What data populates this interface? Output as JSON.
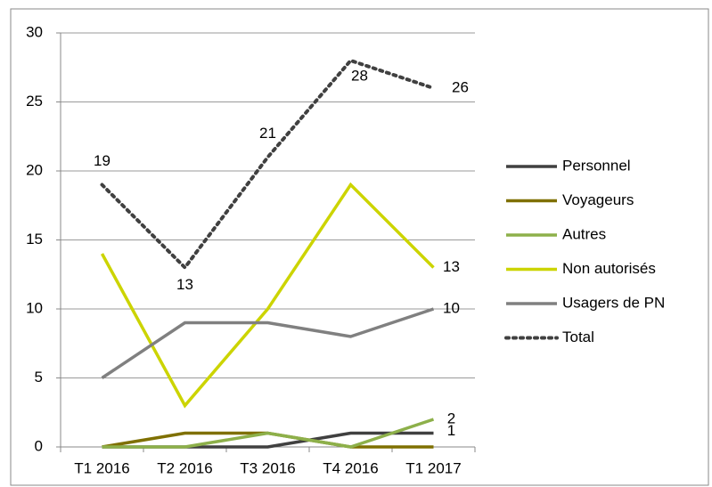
{
  "chart_data": {
    "type": "line",
    "categories": [
      "T1 2016",
      "T2 2016",
      "T3 2016",
      "T4 2016",
      "T1 2017"
    ],
    "ylim": [
      0,
      30
    ],
    "yticks": [
      0,
      5,
      10,
      15,
      20,
      25,
      30
    ],
    "grid": true,
    "legend": "right",
    "series": [
      {
        "name": "Personnel",
        "color": "#404040",
        "values": [
          0,
          0,
          0,
          1,
          1
        ],
        "labeled": [
          4
        ]
      },
      {
        "name": "Voyageurs",
        "color": "#7f7000",
        "values": [
          0,
          1,
          1,
          0,
          0
        ],
        "labeled": []
      },
      {
        "name": "Autres",
        "color": "#8db04a",
        "values": [
          0,
          0,
          1,
          0,
          2
        ],
        "labeled": [
          4
        ]
      },
      {
        "name": "Non autorisés",
        "color": "#ccd400",
        "values": [
          14,
          3,
          10,
          19,
          13
        ],
        "labeled": [
          4
        ]
      },
      {
        "name": "Usagers de PN",
        "color": "#808080",
        "values": [
          5,
          9,
          9,
          8,
          10
        ],
        "labeled": [
          4
        ]
      },
      {
        "name": "Total",
        "color": "#404040",
        "dash": "dotted",
        "values": [
          19,
          13,
          21,
          28,
          26
        ],
        "labeled": [
          0,
          1,
          2,
          3,
          4
        ]
      }
    ]
  }
}
